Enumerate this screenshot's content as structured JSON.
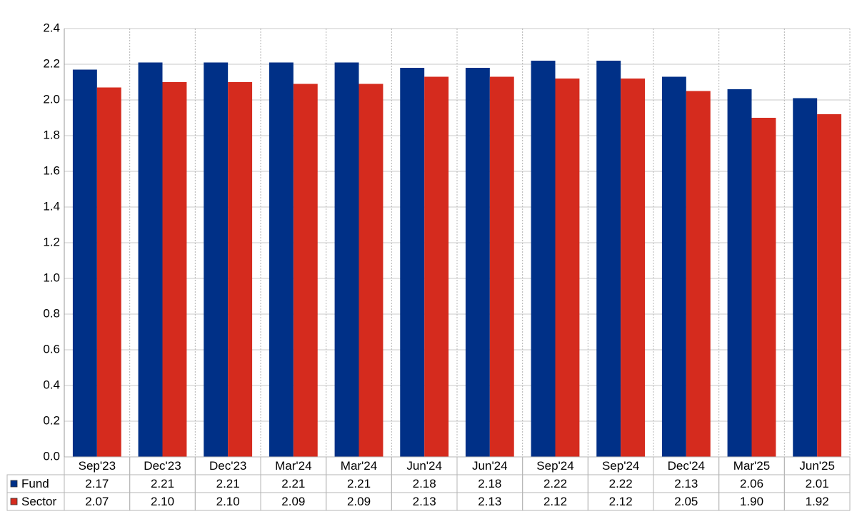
{
  "chart_data": {
    "type": "bar",
    "categories": [
      "Sep'23",
      "Dec'23",
      "Dec'23",
      "Mar'24",
      "Mar'24",
      "Jun'24",
      "Jun'24",
      "Sep'24",
      "Sep'24",
      "Dec'24",
      "Mar'25",
      "Jun'25"
    ],
    "series": [
      {
        "name": "Fund",
        "color": "#003087",
        "values": [
          2.17,
          2.21,
          2.21,
          2.21,
          2.21,
          2.18,
          2.18,
          2.22,
          2.22,
          2.13,
          2.06,
          2.01
        ]
      },
      {
        "name": "Sector",
        "color": "#d52b1e",
        "values": [
          2.07,
          2.1,
          2.1,
          2.09,
          2.09,
          2.13,
          2.13,
          2.12,
          2.12,
          2.05,
          1.9,
          1.92
        ],
        "value_labels": [
          "2.07",
          "2.10",
          "2.10",
          "2.09",
          "2.09",
          "2.13",
          "2.13",
          "2.12",
          "2.12",
          "2.05",
          "1.90",
          "1.92"
        ]
      }
    ],
    "ylim": [
      0,
      2.4
    ],
    "yticks": [
      {
        "value": 0,
        "label": "0.0"
      },
      0.2,
      0.4,
      0.6,
      0.8,
      {
        "value": 1,
        "label": "1.0"
      },
      1.2,
      1.4,
      1.6,
      1.8,
      {
        "value": 2,
        "label": "2.0"
      },
      2.2,
      2.4
    ],
    "grid": true
  }
}
